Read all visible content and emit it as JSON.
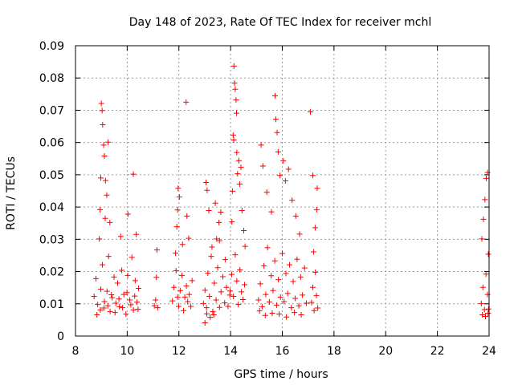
{
  "chart_data": {
    "type": "scatter",
    "title": "Day 148 of 2023, Rate Of TEC Index for receiver mchl",
    "xlabel": "GPS time / hours",
    "ylabel": "ROTI / TECUs",
    "xlim": [
      8,
      24
    ],
    "ylim": [
      0,
      0.09
    ],
    "x_ticks": [
      {
        "value": 8,
        "label": "8"
      },
      {
        "value": 10,
        "label": "10"
      },
      {
        "value": 12,
        "label": "12"
      },
      {
        "value": 14,
        "label": "14"
      },
      {
        "value": 16,
        "label": "16"
      },
      {
        "value": 18,
        "label": "18"
      },
      {
        "value": 20,
        "label": "20"
      },
      {
        "value": 22,
        "label": "22"
      },
      {
        "value": 24,
        "label": "24"
      }
    ],
    "y_ticks": [
      {
        "value": 0,
        "label": "0"
      },
      {
        "value": 0.01,
        "label": "0.01"
      },
      {
        "value": 0.02,
        "label": "0.02"
      },
      {
        "value": 0.03,
        "label": "0.03"
      },
      {
        "value": 0.04,
        "label": "0.04"
      },
      {
        "value": 0.05,
        "label": "0.05"
      },
      {
        "value": 0.06,
        "label": "0.06"
      },
      {
        "value": 0.07,
        "label": "0.07"
      },
      {
        "value": 0.08,
        "label": "0.08"
      },
      {
        "value": 0.09,
        "label": "0.09"
      }
    ],
    "grid": true,
    "marker": "plus",
    "series": [
      {
        "name": "ROTI",
        "color": "#ff0000",
        "points": [
          [
            8.72,
            0.0123
          ],
          [
            8.79,
            0.0178
          ],
          [
            8.86,
            0.0098
          ],
          [
            8.92,
            0.0301
          ],
          [
            8.98,
            0.0145
          ],
          [
            9.04,
            0.0221
          ],
          [
            9.1,
            0.0087
          ],
          [
            9.15,
            0.0365
          ],
          [
            9.22,
            0.0139
          ],
          [
            9.28,
            0.0247
          ],
          [
            9.34,
            0.0076
          ],
          [
            9.42,
            0.0119
          ],
          [
            9.49,
            0.0183
          ],
          [
            9.56,
            0.0102
          ],
          [
            9.63,
            0.0164
          ],
          [
            9.7,
            0.0091
          ],
          [
            9.79,
            0.0204
          ],
          [
            9.87,
            0.0129
          ],
          [
            9.95,
            0.0068
          ],
          [
            10.02,
            0.0188
          ],
          [
            10.1,
            0.0112
          ],
          [
            10.18,
            0.0244
          ],
          [
            10.24,
            0.0081
          ],
          [
            10.31,
            0.0172
          ],
          [
            10.38,
            0.0105
          ],
          [
            10.44,
            0.0148
          ],
          [
            8.83,
            0.0066
          ],
          [
            8.96,
            0.0081
          ],
          [
            9.12,
            0.0107
          ],
          [
            9.25,
            0.0094
          ],
          [
            9.39,
            0.0128
          ],
          [
            9.53,
            0.0073
          ],
          [
            9.68,
            0.0115
          ],
          [
            9.82,
            0.0088
          ],
          [
            9.99,
            0.0135
          ],
          [
            10.14,
            0.0097
          ],
          [
            10.29,
            0.0124
          ],
          [
            10.42,
            0.0083
          ],
          [
            8.95,
            0.0392
          ],
          [
            8.98,
            0.049
          ],
          [
            9.0,
            0.0721
          ],
          [
            9.03,
            0.0699
          ],
          [
            9.05,
            0.0655
          ],
          [
            9.09,
            0.0592
          ],
          [
            9.12,
            0.0558
          ],
          [
            9.16,
            0.0482
          ],
          [
            9.21,
            0.0437
          ],
          [
            9.26,
            0.0601
          ],
          [
            9.33,
            0.0352
          ],
          [
            9.75,
            0.0309
          ],
          [
            10.03,
            0.0378
          ],
          [
            10.24,
            0.0502
          ],
          [
            10.35,
            0.0315
          ],
          [
            11.05,
            0.0094
          ],
          [
            11.1,
            0.0112
          ],
          [
            11.13,
            0.0182
          ],
          [
            11.15,
            0.0267
          ],
          [
            11.18,
            0.0088
          ],
          [
            11.75,
            0.0109
          ],
          [
            11.81,
            0.0151
          ],
          [
            11.89,
            0.0203
          ],
          [
            11.95,
            0.0121
          ],
          [
            11.99,
            0.0092
          ],
          [
            12.05,
            0.0141
          ],
          [
            12.12,
            0.0188
          ],
          [
            12.18,
            0.0079
          ],
          [
            12.23,
            0.0121
          ],
          [
            12.29,
            0.0155
          ],
          [
            12.34,
            0.0107
          ],
          [
            12.4,
            0.0129
          ],
          [
            12.46,
            0.0092
          ],
          [
            12.51,
            0.0172
          ],
          [
            11.87,
            0.0257
          ],
          [
            11.92,
            0.0339
          ],
          [
            11.95,
            0.0391
          ],
          [
            11.97,
            0.0458
          ],
          [
            12.02,
            0.0431
          ],
          [
            12.14,
            0.0284
          ],
          [
            12.28,
            0.0725
          ],
          [
            12.31,
            0.0372
          ],
          [
            12.38,
            0.0303
          ],
          [
            12.95,
            0.0101
          ],
          [
            13.01,
            0.0142
          ],
          [
            13.07,
            0.0088
          ],
          [
            13.12,
            0.0195
          ],
          [
            13.18,
            0.0123
          ],
          [
            13.25,
            0.0247
          ],
          [
            13.31,
            0.0076
          ],
          [
            13.37,
            0.0164
          ],
          [
            13.44,
            0.0112
          ],
          [
            13.5,
            0.0212
          ],
          [
            13.57,
            0.0089
          ],
          [
            13.63,
            0.0137
          ],
          [
            13.7,
            0.0184
          ],
          [
            13.77,
            0.0103
          ],
          [
            13.84,
            0.0151
          ],
          [
            13.9,
            0.0092
          ],
          [
            13.97,
            0.0127
          ],
          [
            13.01,
            0.0041
          ],
          [
            13.08,
            0.0069
          ],
          [
            13.21,
            0.0058
          ],
          [
            13.35,
            0.0066
          ],
          [
            13.46,
            0.0301
          ],
          [
            13.55,
            0.0352
          ],
          [
            13.62,
            0.0384
          ],
          [
            13.05,
            0.0476
          ],
          [
            13.09,
            0.0452
          ],
          [
            13.16,
            0.0389
          ],
          [
            13.28,
            0.0276
          ],
          [
            13.41,
            0.0412
          ],
          [
            13.57,
            0.0296
          ],
          [
            13.79,
            0.0237
          ],
          [
            13.98,
            0.014
          ],
          [
            14.04,
            0.0191
          ],
          [
            14.11,
            0.0123
          ],
          [
            14.18,
            0.0252
          ],
          [
            14.24,
            0.0171
          ],
          [
            14.3,
            0.0098
          ],
          [
            14.36,
            0.0205
          ],
          [
            14.42,
            0.0137
          ],
          [
            14.48,
            0.0113
          ],
          [
            14.54,
            0.0159
          ],
          [
            14.05,
            0.0354
          ],
          [
            14.07,
            0.0449
          ],
          [
            14.1,
            0.0623
          ],
          [
            14.12,
            0.0608
          ],
          [
            14.13,
            0.0837
          ],
          [
            14.15,
            0.0784
          ],
          [
            14.18,
            0.0765
          ],
          [
            14.21,
            0.0732
          ],
          [
            14.23,
            0.0691
          ],
          [
            14.24,
            0.0569
          ],
          [
            14.27,
            0.0503
          ],
          [
            14.32,
            0.0544
          ],
          [
            14.35,
            0.0471
          ],
          [
            14.4,
            0.0523
          ],
          [
            14.44,
            0.0389
          ],
          [
            14.51,
            0.0327
          ],
          [
            14.56,
            0.0278
          ],
          [
            15.08,
            0.0112
          ],
          [
            15.15,
            0.0162
          ],
          [
            15.22,
            0.0091
          ],
          [
            15.29,
            0.0218
          ],
          [
            15.36,
            0.0129
          ],
          [
            15.43,
            0.0274
          ],
          [
            15.5,
            0.0106
          ],
          [
            15.57,
            0.0187
          ],
          [
            15.64,
            0.0141
          ],
          [
            15.71,
            0.0233
          ],
          [
            15.78,
            0.0096
          ],
          [
            15.85,
            0.0175
          ],
          [
            15.93,
            0.0121
          ],
          [
            16.0,
            0.0256
          ],
          [
            16.07,
            0.0107
          ],
          [
            16.14,
            0.0194
          ],
          [
            16.21,
            0.0132
          ],
          [
            16.28,
            0.0221
          ],
          [
            16.35,
            0.0088
          ],
          [
            16.42,
            0.0169
          ],
          [
            16.5,
            0.0117
          ],
          [
            16.57,
            0.0238
          ],
          [
            16.64,
            0.0094
          ],
          [
            16.71,
            0.0183
          ],
          [
            16.78,
            0.0127
          ],
          [
            16.86,
            0.0211
          ],
          [
            16.93,
            0.0102
          ],
          [
            15.12,
            0.0078
          ],
          [
            15.34,
            0.0064
          ],
          [
            15.61,
            0.0071
          ],
          [
            15.88,
            0.0068
          ],
          [
            16.16,
            0.0059
          ],
          [
            16.47,
            0.0073
          ],
          [
            16.73,
            0.0066
          ],
          [
            15.18,
            0.0592
          ],
          [
            15.25,
            0.0527
          ],
          [
            15.4,
            0.0446
          ],
          [
            15.58,
            0.0385
          ],
          [
            15.72,
            0.0745
          ],
          [
            15.75,
            0.0672
          ],
          [
            15.8,
            0.0631
          ],
          [
            15.84,
            0.0571
          ],
          [
            15.91,
            0.0498
          ],
          [
            16.04,
            0.0543
          ],
          [
            16.12,
            0.0481
          ],
          [
            16.24,
            0.0517
          ],
          [
            16.38,
            0.0421
          ],
          [
            16.52,
            0.0372
          ],
          [
            16.67,
            0.0316
          ],
          [
            17.13,
            0.0104
          ],
          [
            17.18,
            0.0151
          ],
          [
            17.23,
            0.0079
          ],
          [
            17.28,
            0.0198
          ],
          [
            17.32,
            0.0126
          ],
          [
            17.37,
            0.0087
          ],
          [
            17.21,
            0.0261
          ],
          [
            17.27,
            0.0336
          ],
          [
            17.33,
            0.0392
          ],
          [
            17.35,
            0.0458
          ],
          [
            17.18,
            0.0498
          ],
          [
            17.09,
            0.0695
          ],
          [
            23.7,
            0.0101
          ],
          [
            23.76,
            0.0151
          ],
          [
            23.82,
            0.0082
          ],
          [
            23.88,
            0.0192
          ],
          [
            23.94,
            0.0129
          ],
          [
            23.98,
            0.0084
          ],
          [
            23.72,
            0.0301
          ],
          [
            23.78,
            0.0362
          ],
          [
            23.84,
            0.0423
          ],
          [
            23.89,
            0.0489
          ],
          [
            23.94,
            0.0507
          ],
          [
            23.97,
            0.0254
          ],
          [
            23.74,
            0.0066
          ],
          [
            23.86,
            0.0061
          ],
          [
            23.96,
            0.0071
          ]
        ]
      }
    ]
  }
}
